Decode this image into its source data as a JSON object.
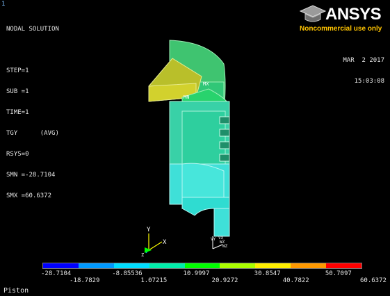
{
  "viewport": {
    "number": "1"
  },
  "info": {
    "lines": [
      "NODAL SOLUTION",
      "",
      "STEP=1",
      "SUB =1",
      "TIME=1",
      "TGY      (AVG)",
      "RSYS=0",
      "SMN =-28.7104",
      "SMX =60.6372"
    ]
  },
  "datetime": {
    "date": "MAR  2 2017",
    "time": "15:03:08"
  },
  "logo": {
    "word": "ANSYS",
    "subtitle": "Noncommercial use only"
  },
  "markers": {
    "mn": "MN",
    "mx": "MX"
  },
  "triad": {
    "x": "X",
    "y": "Y",
    "z": "Z"
  },
  "wcs": {
    "vy": "VY",
    "wz": "WZ",
    "vx": "VX",
    "wz2": "WZ"
  },
  "legend": {
    "colors": [
      "#0000ff",
      "#0099ff",
      "#00ddff",
      "#00eeaa",
      "#00ff00",
      "#aaff00",
      "#ffee00",
      "#ff9900",
      "#ff0000"
    ],
    "top_labels": [
      "-28.7104",
      "-8.85536",
      "10.9997",
      "30.8547",
      "50.7097"
    ],
    "bottom_labels": [
      "-18.7829",
      "1.07215",
      "20.9272",
      "40.7822",
      "60.6372"
    ]
  },
  "title": "Piston"
}
